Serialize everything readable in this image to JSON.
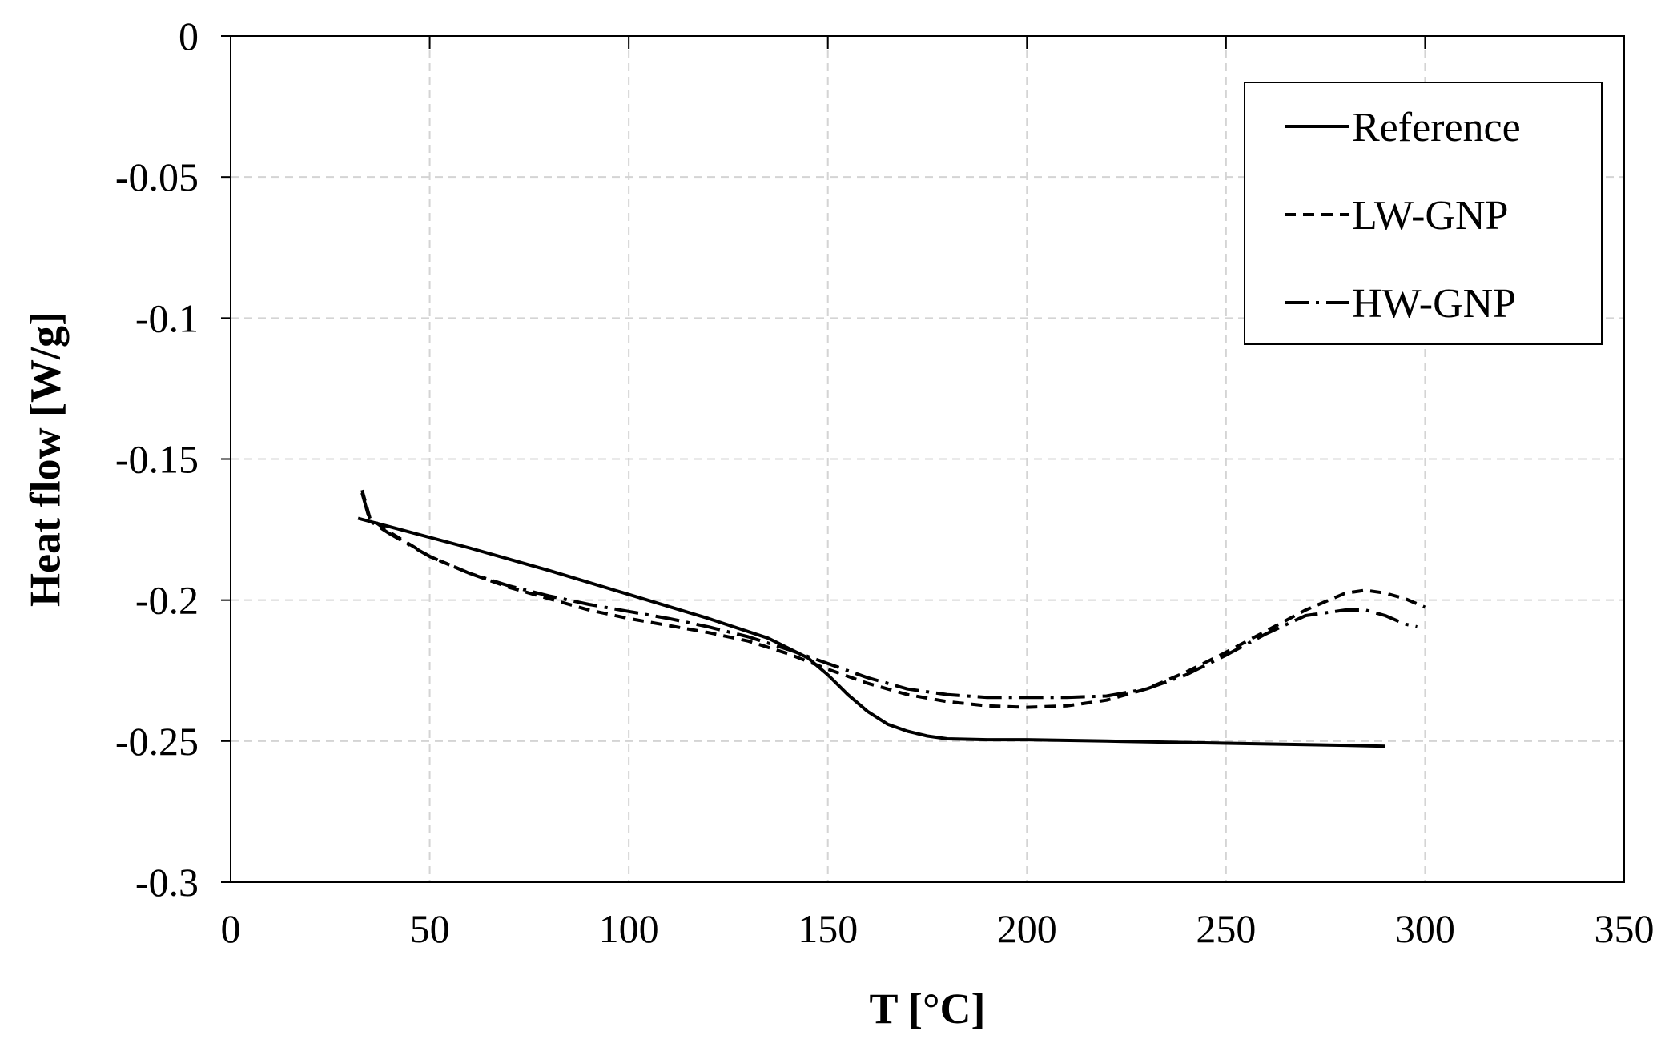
{
  "chart_data": {
    "type": "line",
    "title": "",
    "xlabel": "T [°C]",
    "ylabel": "Heat flow [W/g]",
    "xlim": [
      0,
      350
    ],
    "ylim": [
      -0.3,
      0
    ],
    "xticks": [
      0,
      50,
      100,
      150,
      200,
      250,
      300,
      350
    ],
    "yticks": [
      0,
      -0.05,
      -0.1,
      -0.15,
      -0.2,
      -0.25,
      -0.3
    ],
    "xtick_labels": [
      "0",
      "50",
      "100",
      "150",
      "200",
      "250",
      "300",
      "350"
    ],
    "ytick_labels": [
      "0",
      "-0.05",
      "-0.1",
      "-0.15",
      "-0.2",
      "-0.25",
      "-0.3"
    ],
    "grid": true,
    "legend_position": "top-right",
    "series": [
      {
        "name": "Reference",
        "style": "solid",
        "color": "#000000",
        "x": [
          32,
          40,
          60,
          80,
          100,
          120,
          135,
          145,
          150,
          155,
          160,
          165,
          170,
          175,
          180,
          190,
          200,
          220,
          240,
          260,
          280,
          290
        ],
        "y": [
          -0.171,
          -0.174,
          -0.1815,
          -0.1895,
          -0.198,
          -0.2065,
          -0.2135,
          -0.2205,
          -0.2265,
          -0.2335,
          -0.2395,
          -0.244,
          -0.2465,
          -0.2482,
          -0.2492,
          -0.2495,
          -0.2495,
          -0.25,
          -0.2505,
          -0.251,
          -0.2515,
          -0.2518
        ]
      },
      {
        "name": "LW-GNP",
        "style": "dashed",
        "color": "#000000",
        "x": [
          33,
          35,
          40,
          50,
          60,
          70,
          80,
          90,
          100,
          110,
          120,
          130,
          140,
          150,
          160,
          170,
          180,
          190,
          200,
          210,
          220,
          230,
          240,
          250,
          260,
          270,
          280,
          285,
          290,
          295,
          300
        ],
        "y": [
          -0.161,
          -0.171,
          -0.176,
          -0.1845,
          -0.1905,
          -0.1955,
          -0.1995,
          -0.2035,
          -0.2065,
          -0.209,
          -0.2115,
          -0.2145,
          -0.219,
          -0.2245,
          -0.2295,
          -0.2335,
          -0.236,
          -0.2375,
          -0.238,
          -0.2375,
          -0.2355,
          -0.2315,
          -0.2255,
          -0.2185,
          -0.211,
          -0.2035,
          -0.1975,
          -0.1965,
          -0.1975,
          -0.1995,
          -0.2025
        ]
      },
      {
        "name": "HW-GNP",
        "style": "dashdot",
        "color": "#000000",
        "x": [
          33,
          35,
          40,
          50,
          60,
          70,
          80,
          90,
          100,
          110,
          120,
          130,
          140,
          150,
          160,
          170,
          180,
          190,
          200,
          210,
          220,
          230,
          240,
          250,
          260,
          270,
          280,
          285,
          290,
          295,
          298
        ],
        "y": [
          -0.162,
          -0.172,
          -0.1765,
          -0.1845,
          -0.1905,
          -0.195,
          -0.1985,
          -0.2015,
          -0.204,
          -0.2065,
          -0.2095,
          -0.213,
          -0.2175,
          -0.2225,
          -0.2275,
          -0.2315,
          -0.2335,
          -0.2345,
          -0.2345,
          -0.2345,
          -0.234,
          -0.2315,
          -0.2265,
          -0.2195,
          -0.212,
          -0.2055,
          -0.2035,
          -0.2035,
          -0.2055,
          -0.2085,
          -0.2095
        ]
      }
    ]
  }
}
